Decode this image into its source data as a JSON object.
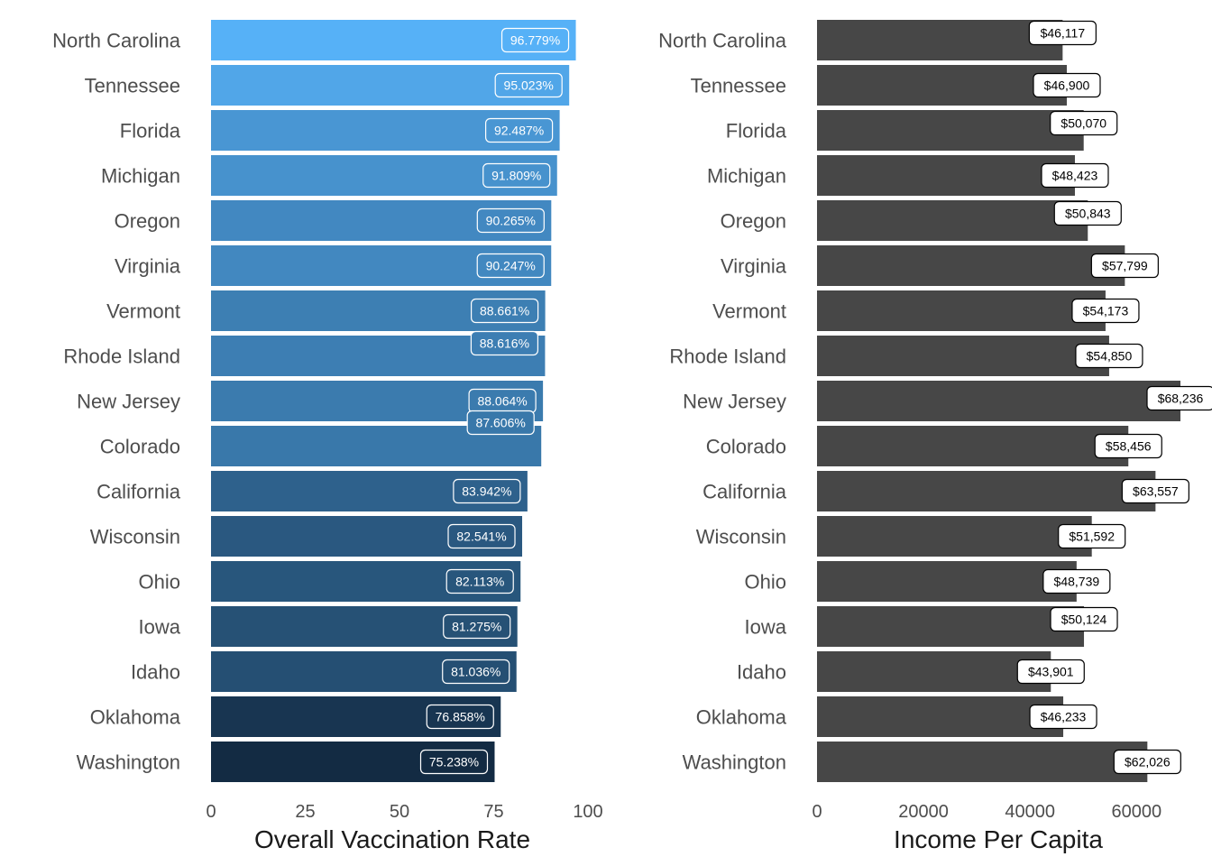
{
  "chart_data": [
    {
      "type": "bar",
      "orientation": "horizontal",
      "title": "",
      "xlabel": "Overall Vaccination Rate",
      "ylabel": "",
      "xlim": [
        0,
        100
      ],
      "xticks": [
        "0",
        "25",
        "50",
        "75",
        "100"
      ],
      "grid": false,
      "legend": "none",
      "color_low": "#132b43",
      "color_high": "#56b1f7",
      "categories": [
        "North Carolina",
        "Tennessee",
        "Florida",
        "Michigan",
        "Oregon",
        "Virginia",
        "Vermont",
        "Rhode Island",
        "New Jersey",
        "Colorado",
        "California",
        "Wisconsin",
        "Ohio",
        "Iowa",
        "Idaho",
        "Oklahoma",
        "Washington"
      ],
      "values": [
        96.779,
        95.023,
        92.487,
        91.809,
        90.265,
        90.247,
        88.661,
        88.616,
        88.064,
        87.606,
        83.942,
        82.541,
        82.113,
        81.275,
        81.036,
        76.858,
        75.238
      ],
      "data_labels": [
        "96.779%",
        "95.023%",
        "92.487%",
        "91.809%",
        "90.265%",
        "90.247%",
        "88.661%",
        "88.616%",
        "88.064%",
        "87.606%",
        "83.942%",
        "82.541%",
        "82.113%",
        "81.275%",
        "81.036%",
        "76.858%",
        "75.238%"
      ]
    },
    {
      "type": "bar",
      "orientation": "horizontal",
      "title": "",
      "xlabel": "Income Per Capita",
      "ylabel": "",
      "xlim": [
        0,
        68236
      ],
      "xticks": [
        "0",
        "20000",
        "40000",
        "60000"
      ],
      "grid": false,
      "legend": "none",
      "bar_color": "#474747",
      "categories": [
        "North Carolina",
        "Tennessee",
        "Florida",
        "Michigan",
        "Oregon",
        "Virginia",
        "Vermont",
        "Rhode Island",
        "New Jersey",
        "Colorado",
        "California",
        "Wisconsin",
        "Ohio",
        "Iowa",
        "Idaho",
        "Oklahoma",
        "Washington"
      ],
      "values": [
        46117,
        46900,
        50070,
        48423,
        50843,
        57799,
        54173,
        54850,
        68236,
        58456,
        63557,
        51592,
        48739,
        50124,
        43901,
        46233,
        62026
      ],
      "data_labels": [
        "$46,117",
        "$46,900",
        "$50,070",
        "$48,423",
        "$50,843",
        "$57,799",
        "$54,173",
        "$54,850",
        "$68,236",
        "$58,456",
        "$63,557",
        "$51,592",
        "$48,739",
        "$50,124",
        "$43,901",
        "$46,233",
        "$62,026"
      ]
    }
  ]
}
